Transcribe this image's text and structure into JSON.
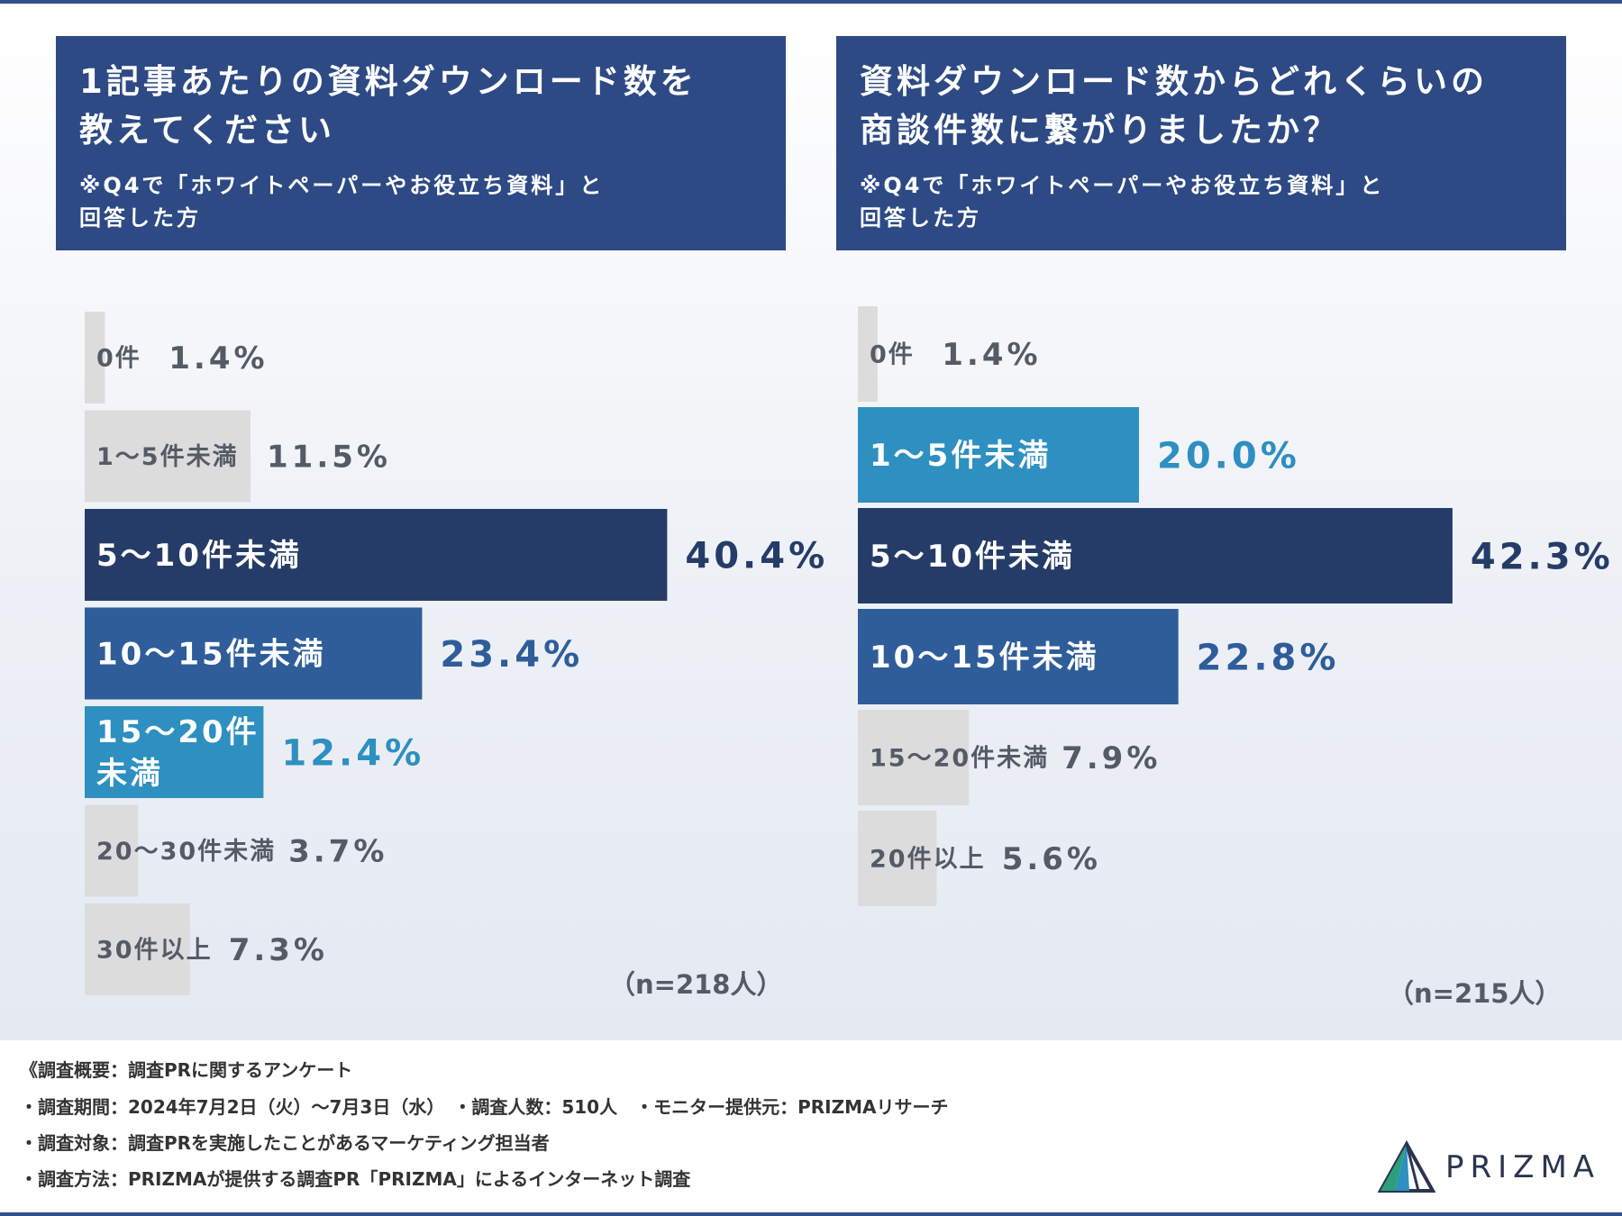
{
  "colors": {
    "header_bg": "#2d4a85",
    "gray": "#dcdcdc",
    "gray_text": "#555b66",
    "dark_navy": "#263c68",
    "mid_blue": "#2e5d9a",
    "light_blue": "#2e8fc1"
  },
  "chart_data": [
    {
      "type": "bar",
      "orientation": "horizontal",
      "title": "1記事あたりの資料ダウンロード数を教えてください",
      "title_lines": [
        "1記事あたりの資料ダウンロード数を",
        "教えてください"
      ],
      "note_lines": [
        "※Q4で「ホワイトペーパーやお役立ち資料」と",
        "回答した方"
      ],
      "categories": [
        "0件",
        "1〜5件未満",
        "5〜10件未満",
        "10〜15件未満",
        "15〜20件未満",
        "20〜30件未満",
        "30件以上"
      ],
      "category_lines": [
        [
          "0件"
        ],
        [
          "1〜5件未満"
        ],
        [
          "5〜10件未満"
        ],
        [
          "10〜15件未満"
        ],
        [
          "15〜20件",
          "未満"
        ],
        [
          "20〜30件未満"
        ],
        [
          "30件以上"
        ]
      ],
      "values": [
        1.4,
        11.5,
        40.4,
        23.4,
        12.4,
        3.7,
        7.3
      ],
      "value_labels": [
        "1.4%",
        "11.5%",
        "40.4%",
        "23.4%",
        "12.4%",
        "3.7%",
        "7.3%"
      ],
      "styles": [
        "gray",
        "gray",
        "dark_navy",
        "mid_blue",
        "light_blue",
        "gray",
        "gray"
      ],
      "unit": "%",
      "n_label": "（n=218人）"
    },
    {
      "type": "bar",
      "orientation": "horizontal",
      "title": "資料ダウンロード数からどれくらいの商談件数に繋がりましたか？",
      "title_lines": [
        "資料ダウンロード数からどれくらいの",
        "商談件数に繋がりましたか？"
      ],
      "note_lines": [
        "※Q4で「ホワイトペーパーやお役立ち資料」と",
        "回答した方"
      ],
      "categories": [
        "0件",
        "1〜5件未満",
        "5〜10件未満",
        "10〜15件未満",
        "15〜20件未満",
        "20件以上"
      ],
      "category_lines": [
        [
          "0件"
        ],
        [
          "1〜5件未満"
        ],
        [
          "5〜10件未満"
        ],
        [
          "10〜15件未満"
        ],
        [
          "15〜20件未満"
        ],
        [
          "20件以上"
        ]
      ],
      "values": [
        1.4,
        20.0,
        42.3,
        22.8,
        7.9,
        5.6
      ],
      "value_labels": [
        "1.4%",
        "20.0%",
        "42.3%",
        "22.8%",
        "7.9%",
        "5.6%"
      ],
      "styles": [
        "gray",
        "light_blue",
        "dark_navy",
        "mid_blue",
        "gray",
        "gray"
      ],
      "unit": "%",
      "n_label": "（n=215人）"
    }
  ],
  "footer": {
    "lines": [
      "《調査概要：調査PRに関するアンケート",
      "・調査期間：2024年7月2日（火）〜7月3日（水）　・調査人数：510人　・モニター提供元：PRIZMAリサーチ",
      "・調査対象：調査PRを実施したことがあるマーケティング担当者",
      "・調査方法：PRIZMAが提供する調査PR「PRIZMA」によるインターネット調査"
    ]
  },
  "logo": {
    "text": "PRIZMA"
  }
}
